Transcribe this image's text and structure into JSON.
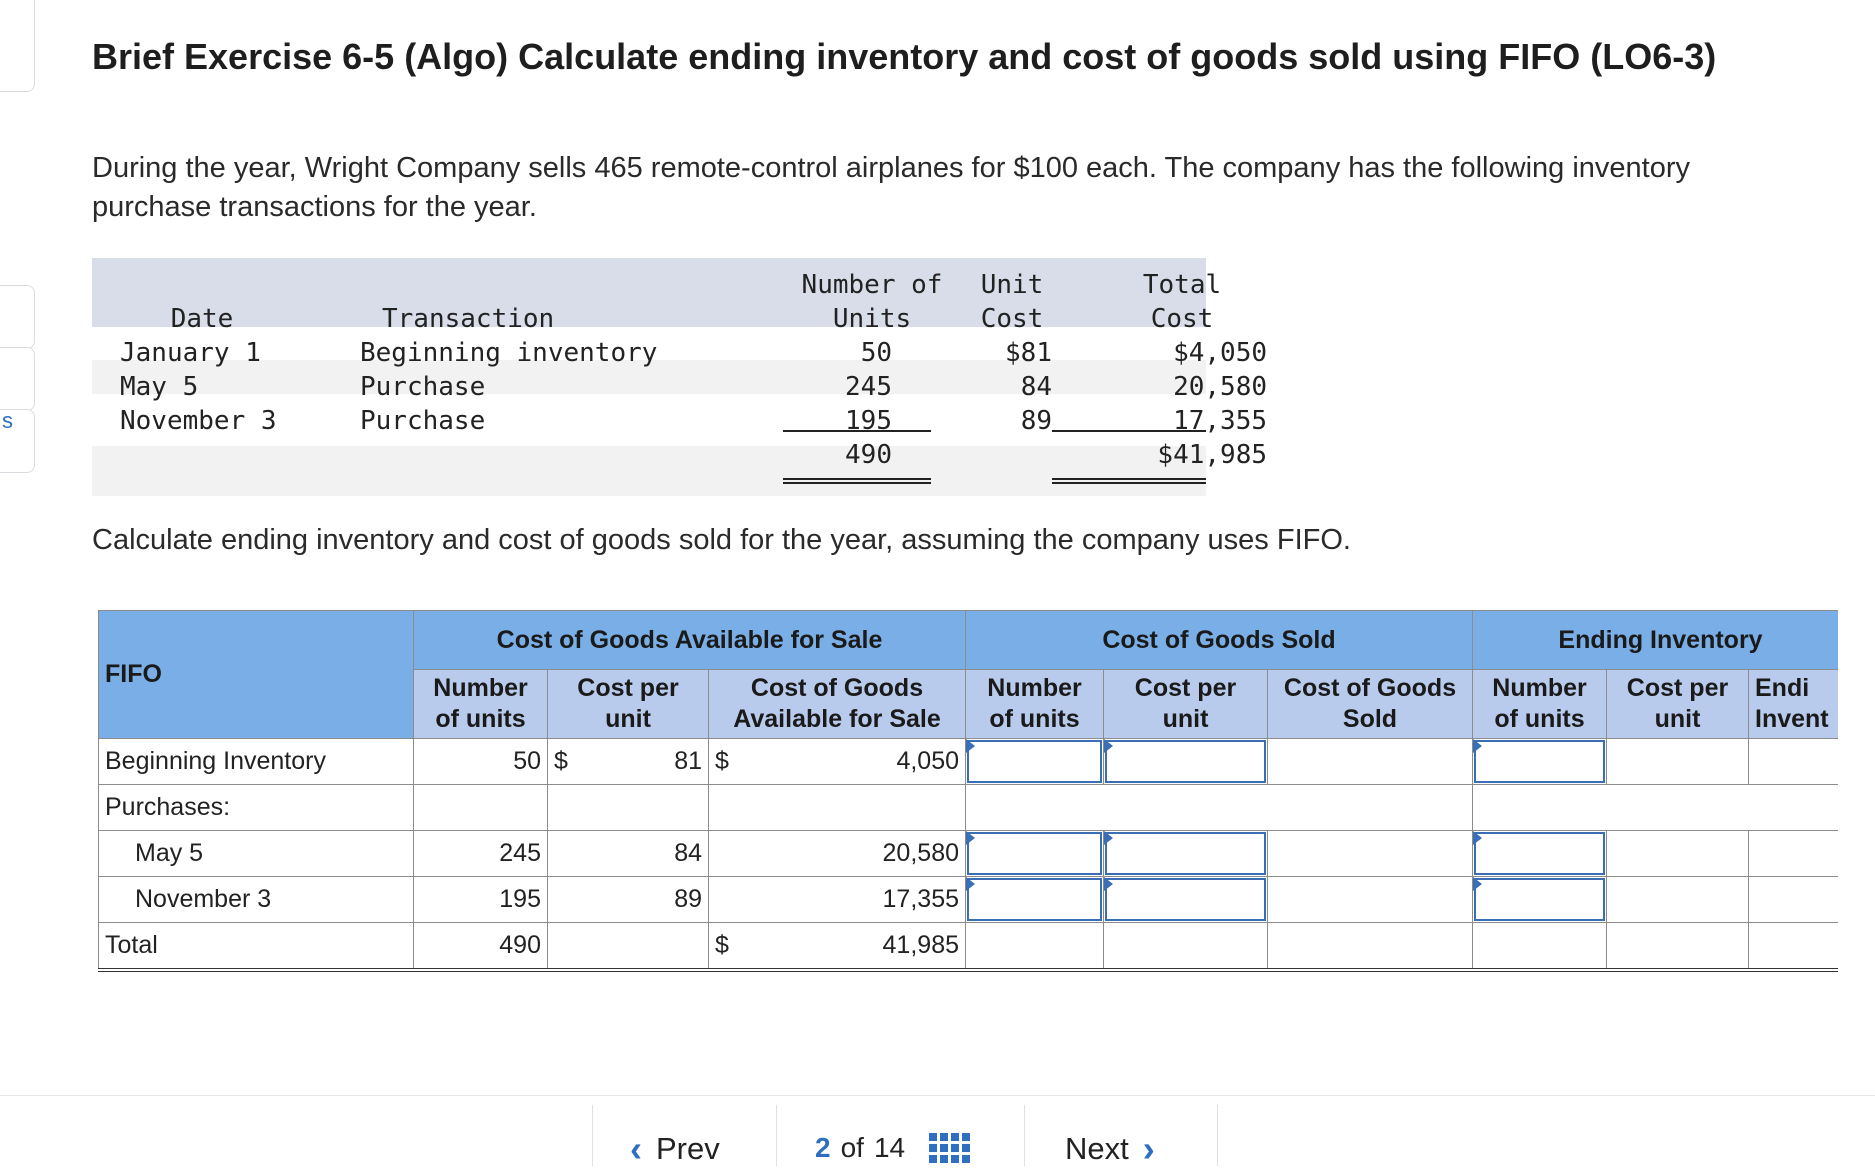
{
  "side_letter": "s",
  "title": "Brief Exercise 6-5 (Algo) Calculate ending inventory and cost of goods sold using FIFO (LO6-3)",
  "intro": "During the year, Wright Company sells 465 remote-control airplanes for $100 each. The company has the following inventory purchase transactions for the year.",
  "given_table": {
    "headers": {
      "date": "Date",
      "transaction": "Transaction",
      "units_1": "Number of",
      "units_2": "Units",
      "unit_cost_1": "Unit",
      "unit_cost_2": "Cost",
      "total_cost_1": "Total",
      "total_cost_2": "Cost"
    },
    "rows": [
      {
        "date": "January 1",
        "transaction": "Beginning inventory",
        "units": "50",
        "unit_cost": "$81",
        "total_cost": "$4,050"
      },
      {
        "date": "May 5",
        "transaction": "Purchase",
        "units": "245",
        "unit_cost": "84",
        "total_cost": "20,580"
      },
      {
        "date": "November 3",
        "transaction": "Purchase",
        "units": "195",
        "unit_cost": "89",
        "total_cost": "17,355"
      }
    ],
    "total_units": "490",
    "total_cost": "$41,985"
  },
  "instruction": "Calculate ending inventory and cost of goods sold for the year, assuming the company uses FIFO.",
  "answer_table": {
    "corner": "FIFO",
    "groups": [
      "Cost of Goods Available for Sale",
      "Cost of Goods Sold",
      "Ending Inventory"
    ],
    "sub_headers": {
      "units": [
        "Number",
        "of units"
      ],
      "cost_per_unit": [
        "Cost per",
        "unit"
      ],
      "cogas": [
        "Cost of Goods",
        "Available for Sale"
      ],
      "cogs": [
        "Cost of Goods",
        "Sold"
      ],
      "ending": [
        "Endi",
        "Invent"
      ]
    },
    "rows": {
      "beginning": {
        "label": "Beginning Inventory",
        "units": "50",
        "dollar1": "$",
        "cost": "81",
        "dollar2": "$",
        "total": "4,050"
      },
      "purchases_label": "Purchases:",
      "may": {
        "label": "May 5",
        "units": "245",
        "cost": "84",
        "total": "20,580"
      },
      "nov": {
        "label": "November 3",
        "units": "195",
        "cost": "89",
        "total": "17,355"
      },
      "total": {
        "label": "Total",
        "units": "490",
        "dollar": "$",
        "total": "41,985"
      }
    }
  },
  "footer": {
    "prev": "Prev",
    "current_page": "2",
    "of": "of",
    "total_pages": "14",
    "next": "Next"
  }
}
